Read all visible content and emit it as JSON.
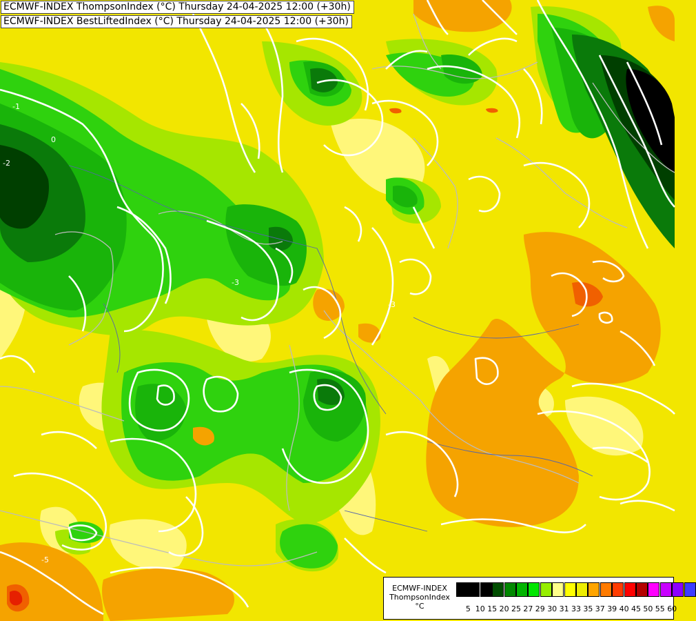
{
  "header": {
    "line1": "ECMWF-INDEX ThompsonIndex (°C) Thursday 24-04-2025 12:00 (+30h)",
    "line2": "ECMWF-INDEX BestLiftedIndex (°C) Thursday 24-04-2025 12:00 (+30h)"
  },
  "legend": {
    "title1": "ECMWF-INDEX",
    "title2": "ThompsonIndex",
    "unit": "°C",
    "colors": [
      "#000000",
      "#000000",
      "#000000",
      "#004d00",
      "#008800",
      "#00b400",
      "#00e600",
      "#96ee00",
      "#ffff8a",
      "#ffff00",
      "#eeee00",
      "#ffa500",
      "#ff7b00",
      "#ff3c00",
      "#ff0000",
      "#b40000",
      "#ff00ff",
      "#c800ff",
      "#8c00ff",
      "#3c3cff"
    ],
    "ticks": [
      "5",
      "10",
      "15",
      "20",
      "25",
      "27",
      "29",
      "30",
      "31",
      "33",
      "35",
      "37",
      "39",
      "40",
      "45",
      "50",
      "55",
      "60"
    ]
  },
  "map": {
    "palette": {
      "yellow": "#f2e600",
      "light_yellow": "#fff77a",
      "lime": "#a6e600",
      "green": "#2fd20e",
      "mid_green": "#19b40a",
      "dark_green": "#0a7a0a",
      "deep_green": "#003f00",
      "black": "#000000",
      "orange": "#f5a300",
      "dark_orange": "#f06000",
      "red": "#e62000",
      "contour": "#ffffff",
      "border": "#bcbcbc",
      "river": "#5566aa"
    },
    "contour_labels": [
      "-1",
      "0",
      "-2",
      "-3",
      "-3",
      "-5"
    ]
  }
}
